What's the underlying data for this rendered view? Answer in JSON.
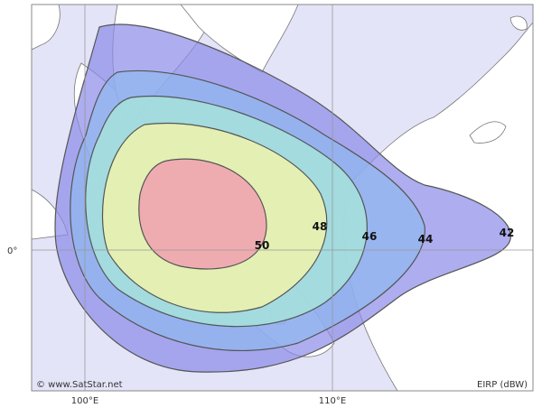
{
  "map": {
    "contour_labels": [
      50,
      48,
      46,
      44,
      42
    ],
    "longitude_labels": [
      "100°E",
      "110°E"
    ],
    "latitude_labels": [
      "0°"
    ],
    "credit": "© www.SatStar.net",
    "legend": "EIRP (dBW)"
  }
}
